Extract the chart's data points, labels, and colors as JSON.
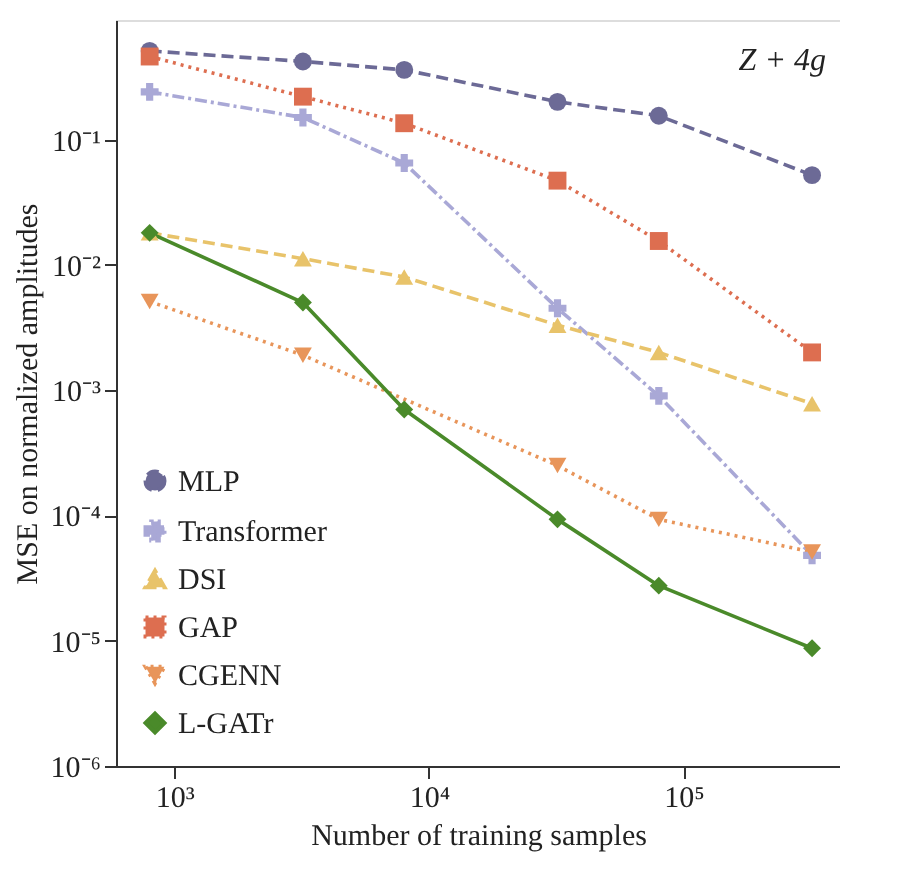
{
  "chart_data": {
    "type": "line",
    "xlabel": "Number of training samples",
    "ylabel": "MSE on normalized amplitudes",
    "annotations": [
      "Z + 4g"
    ],
    "x": [
      800,
      3200,
      8000,
      32000,
      80000,
      320000
    ],
    "log": "xy",
    "xlim": [
      590,
      412000
    ],
    "ylim": [
      1e-06,
      0.9
    ],
    "xticks": [
      {
        "value": 1000,
        "label": "10³"
      },
      {
        "value": 10000,
        "label": "10⁴"
      },
      {
        "value": 100000,
        "label": "10⁵"
      }
    ],
    "yticks": [
      {
        "value": 1e-06,
        "label": "10⁻⁶"
      },
      {
        "value": 1e-05,
        "label": "10⁻⁵"
      },
      {
        "value": 0.0001,
        "label": "10⁻⁴"
      },
      {
        "value": 0.001,
        "label": "10⁻³"
      },
      {
        "value": 0.01,
        "label": "10⁻²"
      },
      {
        "value": 0.1,
        "label": "10⁻¹"
      }
    ],
    "grid": false,
    "legend": "bottom left",
    "series": [
      {
        "name": "MLP",
        "color": "#6c6a96",
        "line_style": "dashed",
        "marker": "circle",
        "values": [
          0.51,
          0.42,
          0.36,
          0.2,
          0.155,
          0.052
        ]
      },
      {
        "name": "Transformer",
        "color": "#a9a8d6",
        "line_style": "dashdot",
        "marker": "cross",
        "values": [
          0.24,
          0.15,
          0.065,
          0.0045,
          0.0009,
          4.8e-05
        ]
      },
      {
        "name": "DSI",
        "color": "#e8c36a",
        "line_style": "dashed",
        "marker": "triangle",
        "values": [
          0.018,
          0.0112,
          0.008,
          0.0033,
          0.002,
          0.00078
        ]
      },
      {
        "name": "GAP",
        "color": "#dd6e50",
        "line_style": "dotted",
        "marker": "square",
        "values": [
          0.46,
          0.22,
          0.135,
          0.047,
          0.0155,
          0.002
        ]
      },
      {
        "name": "CGENN",
        "color": "#e8955a",
        "line_style": "dotted",
        "marker": "triangle-down",
        "values": [
          0.0051,
          0.0019,
          null,
          0.00025,
          9.3e-05,
          5.1e-05
        ]
      },
      {
        "name": "L-GATr",
        "color": "#4a8a2a",
        "line_style": "solid",
        "marker": "diamond",
        "values": [
          0.018,
          0.005,
          0.0007,
          9.3e-05,
          2.75e-05,
          8.7e-06
        ]
      }
    ]
  }
}
